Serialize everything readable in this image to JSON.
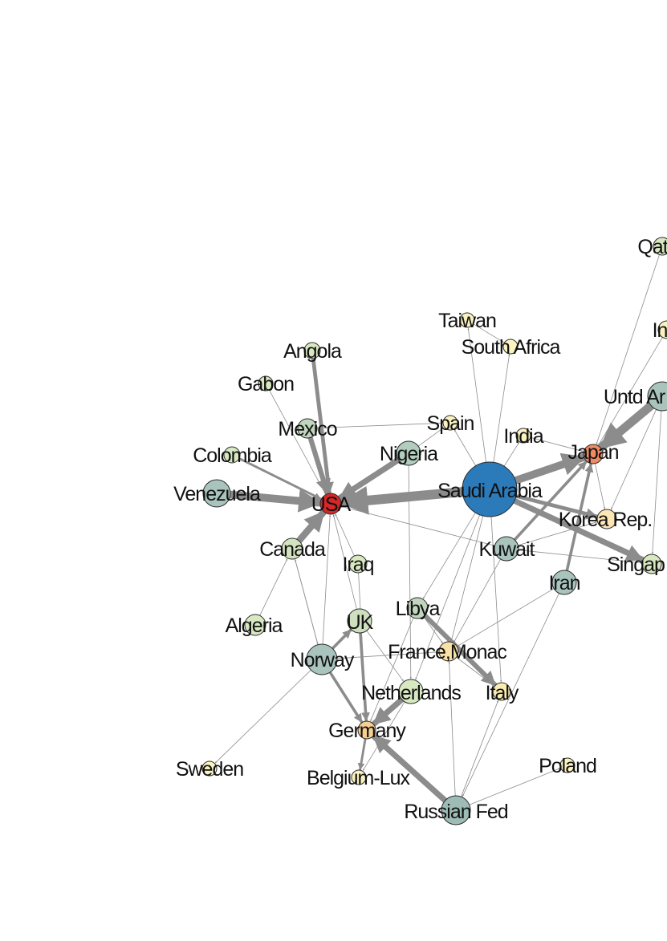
{
  "nodes": [
    {
      "id": "usa",
      "label": "USA",
      "color": "#d62728"
    },
    {
      "id": "saudi",
      "label": "Saudi Arabia",
      "color": "#2b7bba"
    },
    {
      "id": "japan",
      "label": "Japan",
      "color": "#ef8a62"
    },
    {
      "id": "venezuela",
      "label": "Venezuela",
      "color": "#a9c4bc"
    },
    {
      "id": "colombia",
      "label": "Colombia",
      "color": "#d8e8c1"
    },
    {
      "id": "gabon",
      "label": "Gabon",
      "color": "#d8e8c1"
    },
    {
      "id": "angola",
      "label": "Angola",
      "color": "#d8e8c1"
    },
    {
      "id": "mexico",
      "label": "Mexico",
      "color": "#c1d6be"
    },
    {
      "id": "nigeria",
      "label": "Nigeria",
      "color": "#b1cdbd"
    },
    {
      "id": "canada",
      "label": "Canada",
      "color": "#d3e3c0"
    },
    {
      "id": "iraq",
      "label": "Iraq",
      "color": "#d8e8c1"
    },
    {
      "id": "algeria",
      "label": "Algeria",
      "color": "#d8e8c1"
    },
    {
      "id": "norway",
      "label": "Norway",
      "color": "#a9c4bc"
    },
    {
      "id": "uk",
      "label": "UK",
      "color": "#cfe0bf"
    },
    {
      "id": "libya",
      "label": "Libya",
      "color": "#c1d6be"
    },
    {
      "id": "france",
      "label": "France,Monac",
      "color": "#f9e2a8"
    },
    {
      "id": "netherlands",
      "label": "Netherlands",
      "color": "#d8e8c1"
    },
    {
      "id": "italy",
      "label": "Italy",
      "color": "#f9ecb0"
    },
    {
      "id": "germany",
      "label": "Germany",
      "color": "#f7d090"
    },
    {
      "id": "belgium",
      "label": "Belgium-Lux",
      "color": "#fbf3bf"
    },
    {
      "id": "russia",
      "label": "Russian Fed",
      "color": "#9ebcb6"
    },
    {
      "id": "sweden",
      "label": "Sweden",
      "color": "#fbf3bf"
    },
    {
      "id": "poland",
      "label": "Poland",
      "color": "#fbf3bf"
    },
    {
      "id": "taiwan",
      "label": "Taiwan",
      "color": "#fbf3bf"
    },
    {
      "id": "safrica",
      "label": "South Africa",
      "color": "#fbf3bf"
    },
    {
      "id": "spain",
      "label": "Spain",
      "color": "#fbf3bf"
    },
    {
      "id": "india",
      "label": "India",
      "color": "#fbf3bf"
    },
    {
      "id": "kuwait",
      "label": "Kuwait",
      "color": "#a9c4bc"
    },
    {
      "id": "iran",
      "label": "Iran",
      "color": "#a9c4bc"
    },
    {
      "id": "korea",
      "label": "Korea Rep.",
      "color": "#fbe6b5"
    },
    {
      "id": "singapore",
      "label": "Singap",
      "color": "#d8e8c1"
    },
    {
      "id": "uae",
      "label": "Untd Ar",
      "color": "#a9c4bc"
    },
    {
      "id": "qatar",
      "label": "Qat",
      "color": "#d8e8c1"
    },
    {
      "id": "indonesia",
      "label": "In",
      "color": "#fbf3bf"
    }
  ],
  "edges": [
    {
      "from": "saudi",
      "to": "usa",
      "weight": 5
    },
    {
      "from": "venezuela",
      "to": "usa",
      "weight": 4
    },
    {
      "from": "mexico",
      "to": "usa",
      "weight": 2.6
    },
    {
      "from": "angola",
      "to": "usa",
      "weight": 2
    },
    {
      "from": "gabon",
      "to": "usa",
      "weight": 1
    },
    {
      "from": "colombia",
      "to": "usa",
      "weight": 1.2
    },
    {
      "from": "nigeria",
      "to": "usa",
      "weight": 3
    },
    {
      "from": "canada",
      "to": "usa",
      "weight": 3.5
    },
    {
      "from": "iraq",
      "to": "usa",
      "weight": 1
    },
    {
      "from": "kuwait",
      "to": "usa",
      "weight": 1
    },
    {
      "from": "algeria",
      "to": "canada",
      "weight": 1
    },
    {
      "from": "norway",
      "to": "canada",
      "weight": 1
    },
    {
      "from": "saudi",
      "to": "japan",
      "weight": 4
    },
    {
      "from": "uae",
      "to": "japan",
      "weight": 4.5
    },
    {
      "from": "qatar",
      "to": "japan",
      "weight": 1
    },
    {
      "from": "saudi",
      "to": "singapore",
      "weight": 3
    },
    {
      "from": "kuwait",
      "to": "japan",
      "weight": 1.5
    },
    {
      "from": "iran",
      "to": "japan",
      "weight": 1.5
    },
    {
      "from": "saudi",
      "to": "korea",
      "weight": 2
    },
    {
      "from": "norway",
      "to": "uk",
      "weight": 1.5
    },
    {
      "from": "norway",
      "to": "germany",
      "weight": 1.5
    },
    {
      "from": "uk",
      "to": "germany",
      "weight": 1.5
    },
    {
      "from": "netherlands",
      "to": "germany",
      "weight": 3
    },
    {
      "from": "russia",
      "to": "germany",
      "weight": 3
    },
    {
      "from": "libya",
      "to": "italy",
      "weight": 2.5
    },
    {
      "from": "libya",
      "to": "france",
      "weight": 1
    },
    {
      "from": "norway",
      "to": "france",
      "weight": 1
    },
    {
      "from": "saudi",
      "to": "france",
      "weight": 1
    },
    {
      "from": "saudi",
      "to": "italy",
      "weight": 1
    },
    {
      "from": "russia",
      "to": "italy",
      "weight": 1
    },
    {
      "from": "russia",
      "to": "france",
      "weight": 1
    },
    {
      "from": "russia",
      "to": "poland",
      "weight": 1
    },
    {
      "from": "norway",
      "to": "sweden",
      "weight": 1
    },
    {
      "from": "uk",
      "to": "usa",
      "weight": 1
    },
    {
      "from": "norway",
      "to": "usa",
      "weight": 1
    },
    {
      "from": "saudi",
      "to": "taiwan",
      "weight": 1
    },
    {
      "from": "saudi",
      "to": "safrica",
      "weight": 1
    },
    {
      "from": "saudi",
      "to": "spain",
      "weight": 1
    },
    {
      "from": "saudi",
      "to": "india",
      "weight": 1
    },
    {
      "from": "saudi",
      "to": "netherlands",
      "weight": 1
    },
    {
      "from": "saudi",
      "to": "libya",
      "weight": 1
    },
    {
      "from": "kuwait",
      "to": "singapore",
      "weight": 1
    },
    {
      "from": "kuwait",
      "to": "korea",
      "weight": 1
    },
    {
      "from": "kuwait",
      "to": "france",
      "weight": 1
    },
    {
      "from": "iran",
      "to": "russia",
      "weight": 1
    },
    {
      "from": "iran",
      "to": "france",
      "weight": 1
    },
    {
      "from": "uae",
      "to": "korea",
      "weight": 1
    },
    {
      "from": "uae",
      "to": "singapore",
      "weight": 1
    },
    {
      "from": "indonesia",
      "to": "japan",
      "weight": 1
    },
    {
      "from": "japan",
      "to": "korea",
      "weight": 1
    },
    {
      "from": "nigeria",
      "to": "spain",
      "weight": 1
    },
    {
      "from": "nigeria",
      "to": "netherlands",
      "weight": 1
    },
    {
      "from": "iraq",
      "to": "germany",
      "weight": 1
    },
    {
      "from": "uk",
      "to": "netherlands",
      "weight": 1
    },
    {
      "from": "germany",
      "to": "belgium",
      "weight": 1.2
    },
    {
      "from": "netherlands",
      "to": "belgium",
      "weight": 1
    },
    {
      "from": "libya",
      "to": "germany",
      "weight": 1
    },
    {
      "from": "france",
      "to": "italy",
      "weight": 1
    },
    {
      "from": "canada",
      "to": "norway",
      "weight": 1
    },
    {
      "from": "mexico",
      "to": "spain",
      "weight": 1
    },
    {
      "from": "india",
      "to": "japan",
      "weight": 1
    },
    {
      "from": "taiwan",
      "to": "safrica",
      "weight": 1
    }
  ]
}
